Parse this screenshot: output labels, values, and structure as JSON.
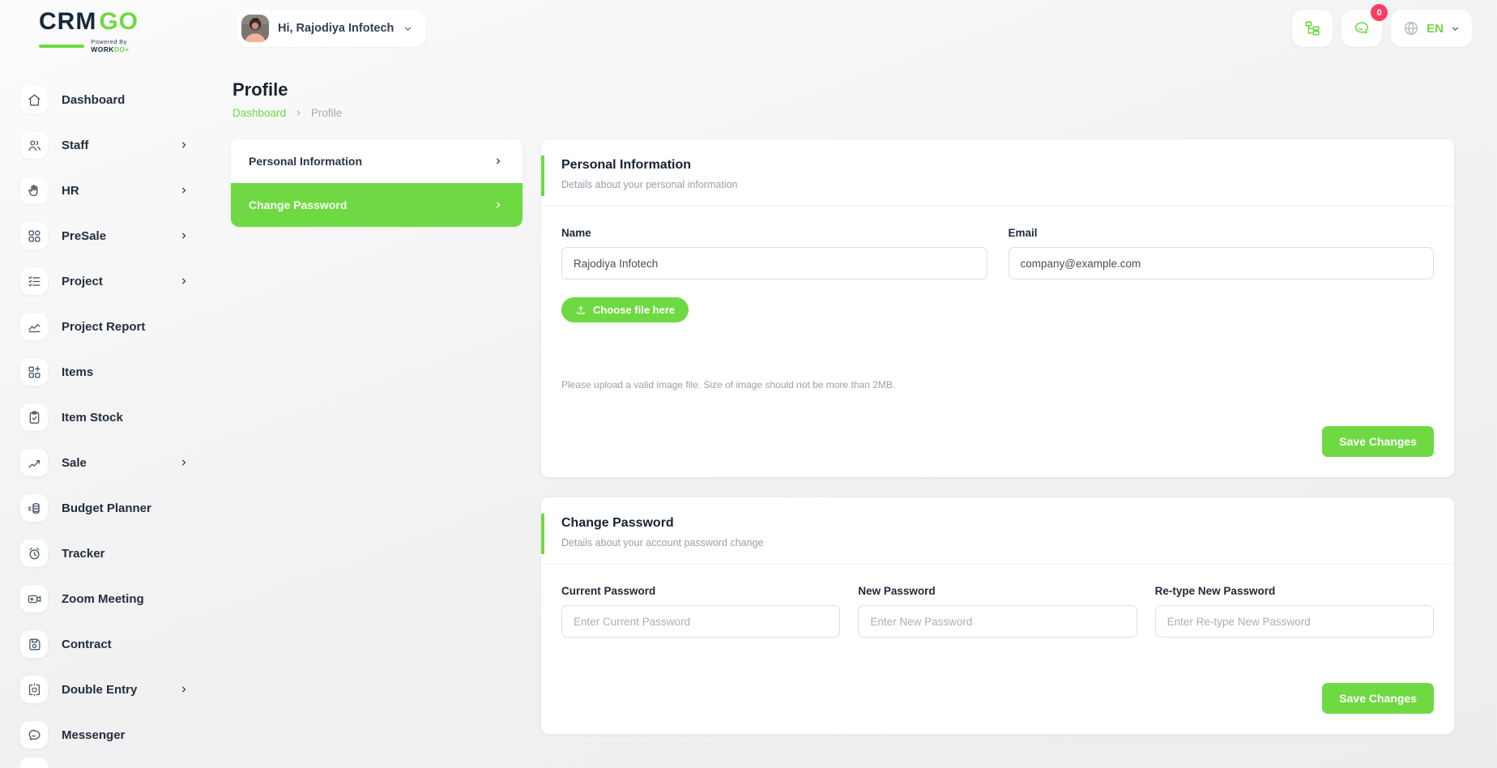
{
  "brand": {
    "crm": "CRM",
    "go": "GO",
    "powered_by": "Powered By ",
    "work": "WORK",
    "do": "DO",
    "accent_color": "#6fd943",
    "dark_color": "#16283c"
  },
  "header": {
    "greeting": "Hi, Rajodiya Infotech",
    "messages_badge": "0",
    "language": "EN",
    "icons": [
      "org-tree-icon",
      "messages-icon",
      "globe-icon"
    ]
  },
  "sidebar": {
    "items": [
      {
        "label": "Dashboard",
        "icon": "home-icon",
        "has_children": false
      },
      {
        "label": "Staff",
        "icon": "users-icon",
        "has_children": true
      },
      {
        "label": "HR",
        "icon": "hand-icon",
        "has_children": true
      },
      {
        "label": "PreSale",
        "icon": "grid-icon",
        "has_children": true
      },
      {
        "label": "Project",
        "icon": "task-list-icon",
        "has_children": true
      },
      {
        "label": "Project Report",
        "icon": "chart-line-icon",
        "has_children": false
      },
      {
        "label": "Items",
        "icon": "grid-plus-icon",
        "has_children": false
      },
      {
        "label": "Item Stock",
        "icon": "clipboard-check-icon",
        "has_children": false
      },
      {
        "label": "Sale",
        "icon": "trend-up-icon",
        "has_children": true
      },
      {
        "label": "Budget Planner",
        "icon": "coins-icon",
        "has_children": false
      },
      {
        "label": "Tracker",
        "icon": "alarm-clock-icon",
        "has_children": false
      },
      {
        "label": "Zoom Meeting",
        "icon": "video-camera-icon",
        "has_children": false
      },
      {
        "label": "Contract",
        "icon": "save-icon",
        "has_children": false
      },
      {
        "label": "Double Entry",
        "icon": "ledger-icon",
        "has_children": true
      },
      {
        "label": "Messenger",
        "icon": "chat-bubble-icon",
        "has_children": false
      }
    ]
  },
  "page": {
    "title": "Profile",
    "breadcrumb_home": "Dashboard",
    "breadcrumb_current": "Profile"
  },
  "tabs": [
    {
      "label": "Personal Information",
      "active": false
    },
    {
      "label": "Change Password",
      "active": true
    }
  ],
  "personal": {
    "title": "Personal Information",
    "subtitle": "Details about your personal information",
    "name_label": "Name",
    "name_value": "Rajodiya Infotech",
    "email_label": "Email",
    "email_value": "company@example.com",
    "choose_file_label": "Choose file here",
    "upload_note": "Please upload a valid image file. Size of image should not be more than 2MB.",
    "save_label": "Save Changes"
  },
  "password": {
    "title": "Change Password",
    "subtitle": "Details about your account password change",
    "fields": [
      {
        "label": "Current Password",
        "placeholder": "Enter Current Password"
      },
      {
        "label": "New Password",
        "placeholder": "Enter New Password"
      },
      {
        "label": "Re-type New Password",
        "placeholder": "Enter Re-type New Password"
      }
    ],
    "save_label": "Save Changes"
  }
}
